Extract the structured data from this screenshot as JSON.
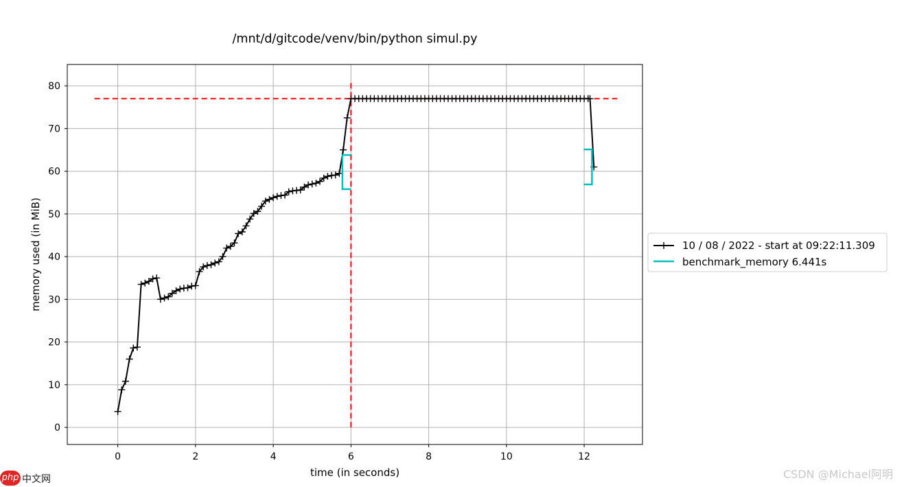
{
  "chart_data": {
    "type": "line",
    "title": "/mnt/d/gitcode/venv/bin/python simul.py",
    "xlabel": "time (in seconds)",
    "ylabel": "memory used (in MiB)",
    "xlim": [
      -1.3,
      13.5
    ],
    "ylim": [
      -4,
      85
    ],
    "xticks": [
      0,
      2,
      4,
      6,
      8,
      10,
      12
    ],
    "yticks": [
      0,
      10,
      20,
      30,
      40,
      50,
      60,
      70,
      80
    ],
    "grid": true,
    "legend_position": "right, outside plot area",
    "series": [
      {
        "name": "10 / 08 / 2022 - start at 09:22:11.309",
        "color": "#000000",
        "marker": "+",
        "x": [
          0.0,
          0.1,
          0.2,
          0.3,
          0.4,
          0.5,
          0.6,
          0.7,
          0.8,
          0.9,
          1.0,
          1.1,
          1.2,
          1.3,
          1.4,
          1.5,
          1.6,
          1.7,
          1.8,
          1.9,
          2.0,
          2.1,
          2.2,
          2.3,
          2.4,
          2.5,
          2.6,
          2.7,
          2.8,
          2.9,
          3.0,
          3.1,
          3.2,
          3.3,
          3.4,
          3.5,
          3.6,
          3.7,
          3.8,
          3.9,
          4.0,
          4.1,
          4.2,
          4.3,
          4.4,
          4.5,
          4.6,
          4.7,
          4.8,
          4.9,
          5.0,
          5.1,
          5.2,
          5.3,
          5.4,
          5.5,
          5.6,
          5.7,
          5.8,
          5.9,
          6.0,
          6.1,
          6.2,
          6.3,
          6.4,
          6.5,
          6.6,
          6.7,
          6.8,
          6.9,
          7.0,
          7.1,
          7.2,
          7.3,
          7.4,
          7.5,
          7.6,
          7.7,
          7.8,
          7.9,
          8.0,
          8.1,
          8.2,
          8.3,
          8.4,
          8.5,
          8.6,
          8.7,
          8.8,
          8.9,
          9.0,
          9.1,
          9.2,
          9.3,
          9.4,
          9.5,
          9.6,
          9.7,
          9.8,
          9.9,
          10.0,
          10.1,
          10.2,
          10.3,
          10.4,
          10.5,
          10.6,
          10.7,
          10.8,
          10.9,
          11.0,
          11.1,
          11.2,
          11.3,
          11.4,
          11.5,
          11.6,
          11.7,
          11.8,
          11.9,
          12.0,
          12.1,
          12.15,
          12.25
        ],
        "y": [
          3.7,
          8.8,
          10.8,
          16.0,
          18.6,
          18.8,
          33.5,
          33.8,
          34.2,
          34.8,
          35.0,
          30.0,
          30.3,
          30.6,
          31.4,
          32.0,
          32.4,
          32.6,
          32.7,
          33.1,
          33.2,
          36.5,
          37.6,
          37.9,
          38.1,
          38.5,
          38.8,
          40.0,
          42.0,
          42.4,
          43.2,
          45.4,
          45.8,
          47.2,
          48.8,
          50.1,
          50.6,
          51.8,
          53.0,
          53.4,
          53.8,
          54.1,
          54.3,
          54.4,
          55.2,
          55.4,
          55.5,
          55.6,
          56.3,
          56.8,
          57.0,
          57.2,
          57.6,
          58.4,
          58.8,
          59.0,
          59.1,
          59.5,
          65.0,
          72.5,
          77.0,
          77.0,
          77.0,
          77.0,
          77.0,
          77.0,
          77.0,
          77.0,
          77.0,
          77.0,
          77.0,
          77.0,
          77.0,
          77.0,
          77.0,
          77.0,
          77.0,
          77.0,
          77.0,
          77.0,
          77.0,
          77.0,
          77.0,
          77.0,
          77.0,
          77.0,
          77.0,
          77.0,
          77.0,
          77.0,
          77.0,
          77.0,
          77.0,
          77.0,
          77.0,
          77.0,
          77.0,
          77.0,
          77.0,
          77.0,
          77.0,
          77.0,
          77.0,
          77.0,
          77.0,
          77.0,
          77.0,
          77.0,
          77.0,
          77.0,
          77.0,
          77.0,
          77.0,
          77.0,
          77.0,
          77.0,
          77.0,
          77.0,
          77.0,
          77.0,
          77.0,
          77.0,
          77.0,
          61.0
        ]
      },
      {
        "name": "benchmark_memory 6.441s",
        "color": "#00bfbf",
        "type": "bracket",
        "start": {
          "x": 5.78,
          "y_low": 55.8,
          "y_high": 63.8
        },
        "end": {
          "x": 12.2,
          "y_low": 56.9,
          "y_high": 65.1
        }
      }
    ],
    "reference_lines": [
      {
        "orientation": "horizontal",
        "value": 77.0,
        "x_from": -0.6,
        "x_to": 12.85,
        "color": "#ff0000",
        "style": "dashed"
      },
      {
        "orientation": "vertical",
        "value": 6.0,
        "y_from": 0.0,
        "y_to": 80.8,
        "color": "#ff0000",
        "style": "dashed"
      }
    ]
  },
  "watermark": "CSDN @Michael阿明",
  "site_logo": {
    "badge": "php",
    "name": "中文网"
  }
}
